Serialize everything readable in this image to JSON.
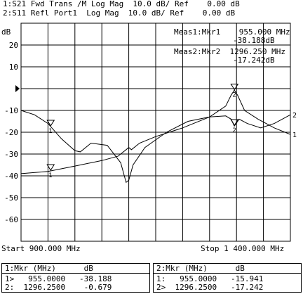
{
  "header": {
    "line1": "1:S21 Fwd Trans /M Log Mag  10.0 dB/ Ref    0.00 dB",
    "line2": "2:S11 Refl Port1  Log Mag  10.0 dB/ Ref    0.00 dB"
  },
  "markers_readout": {
    "meas1_label": "Meas1:Mkr1    955.000 MHz",
    "meas1_value": "-38.188dB",
    "meas2_label": "Meas2:Mkr2  1296.250 MHz",
    "meas2_value": "-17.242dB"
  },
  "axis": {
    "unit": "dB",
    "ticks": [
      "20",
      "10",
      "",
      "-10",
      "-20",
      "-30",
      "-40",
      "-50",
      "-60"
    ],
    "start_label": "Start 900.000 MHz",
    "stop_label": "Stop 1 400.000 MHz"
  },
  "table1": {
    "header": "1:Mkr (MHz)      dB",
    "row1": "1>   955.0000   -38.188",
    "row2": "2:  1296.2500    -0.679"
  },
  "table2": {
    "header": "2:Mkr (MHz)      dB",
    "row1": "1:   955.0000   -15.941",
    "row2": "2>  1296.2500   -17.242"
  },
  "chart_data": {
    "type": "line",
    "xlim": [
      900,
      1400
    ],
    "ylim": [
      -70,
      30
    ],
    "series": [
      {
        "name": "1",
        "x": [
          900,
          950,
          1000,
          1050,
          1080,
          1095,
          1100,
          1105,
          1120,
          1150,
          1200,
          1250,
          1280,
          1290,
          1296,
          1302,
          1315,
          1340,
          1370,
          1400
        ],
        "y": [
          -39,
          -38,
          -35.5,
          -33,
          -31,
          -28,
          -27,
          -28,
          -25,
          -22,
          -18,
          -13,
          -8,
          -3,
          -0.7,
          -3,
          -10,
          -14,
          -18,
          -21
        ]
      },
      {
        "name": "2",
        "x": [
          900,
          925,
          950,
          975,
          1000,
          1010,
          1030,
          1060,
          1085,
          1095,
          1100,
          1108,
          1130,
          1170,
          1210,
          1250,
          1280,
          1290,
          1296,
          1305,
          1320,
          1345,
          1370,
          1400
        ],
        "y": [
          -10,
          -12,
          -16,
          -23,
          -28.5,
          -29,
          -25,
          -26,
          -34,
          -43,
          -42,
          -35,
          -27,
          -20,
          -15,
          -13,
          -12.5,
          -14,
          -17.2,
          -14,
          -16,
          -18,
          -16,
          -12
        ]
      }
    ]
  }
}
